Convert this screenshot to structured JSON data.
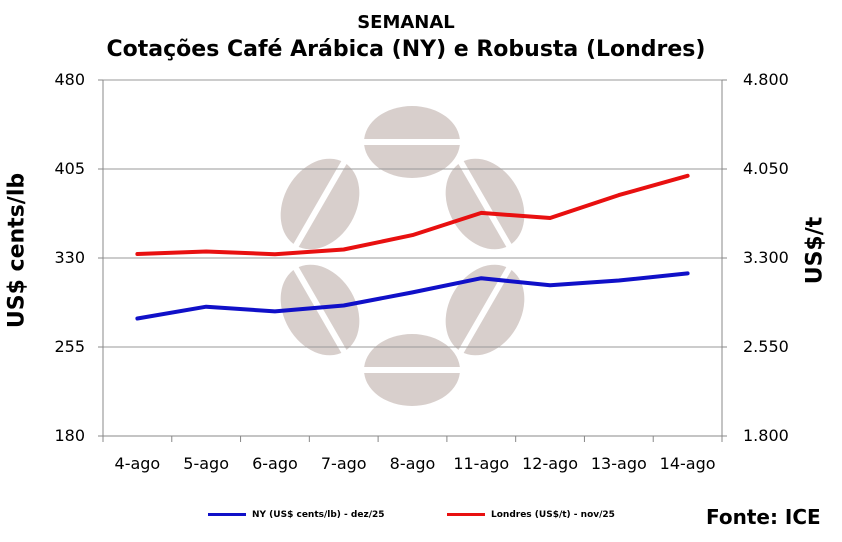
{
  "header": {
    "period": "SEMANAL",
    "title": "Cotações Café Arábica (NY) e Robusta (Londres)"
  },
  "source": "Fonte: ICE",
  "chart_data": {
    "type": "line",
    "categories": [
      "4-ago",
      "5-ago",
      "6-ago",
      "7-ago",
      "8-ago",
      "11-ago",
      "12-ago",
      "13-ago",
      "14-ago"
    ],
    "ylabel": "US$ cents/lb",
    "y2label": "US$/t",
    "ylim": [
      180,
      480
    ],
    "y2lim": [
      1800,
      4800
    ],
    "yticks": [
      "180",
      "255",
      "330",
      "405",
      "480"
    ],
    "y2ticks": [
      "1.800",
      "2.550",
      "3.300",
      "4.050",
      "4.800"
    ],
    "grid": "horizontal",
    "legend_position": "bottom",
    "series": [
      {
        "name": "NY (US$ cents/lb) - dez/25",
        "axis": "left",
        "color": "#1010c8",
        "values": [
          279,
          289,
          285,
          290,
          301,
          313,
          307,
          311,
          317
        ]
      },
      {
        "name": "Londres (US$/t) - nov/25",
        "axis": "right",
        "color": "#e81010",
        "values": [
          3334,
          3355,
          3332,
          3372,
          3493,
          3680,
          3637,
          3830,
          3993
        ]
      }
    ]
  }
}
